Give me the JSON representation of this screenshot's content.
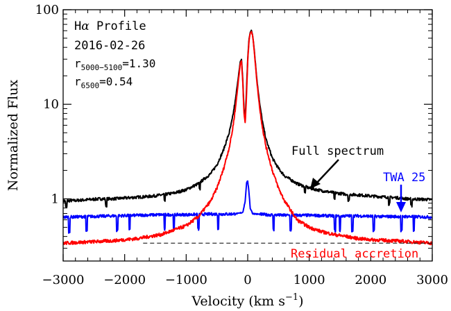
{
  "chart_data": {
    "type": "line",
    "title": "",
    "xlabel_main": "Velocity (km s",
    "xlabel_sup": "−1",
    "xlabel_close": ")",
    "ylabel": "Normalized Flux",
    "xlim": [
      -3000,
      3000
    ],
    "ylim": [
      0.22,
      100
    ],
    "yscale": "log",
    "x_ticks": [
      -3000,
      -2000,
      -1000,
      0,
      1000,
      2000,
      3000
    ],
    "x_tick_labels": [
      "−3000",
      "−2000",
      "−1000",
      "0",
      "1000",
      "2000",
      "3000"
    ],
    "y_ticks": [
      1,
      10,
      100
    ],
    "y_tick_labels": [
      "1",
      "10",
      "100"
    ],
    "grid": false,
    "legend": "none",
    "annotations": {
      "profile_prefix": "H",
      "profile_alpha": "α",
      "profile_suffix": " Profile",
      "date": "2016-02-26",
      "r1_base": "r",
      "r1_sub": "5000−5100",
      "r1_value": "=1.30",
      "r2_base": "r",
      "r2_sub": "6500",
      "r2_value": "=0.54",
      "full_label": "Full spectrum",
      "template_label": "TWA 25",
      "residual_label": "Residual accretion"
    },
    "series": [
      {
        "color": "#000000",
        "role": "full",
        "x": [
          -3000,
          -2800,
          -2600,
          -2400,
          -2200,
          -2000,
          -1800,
          -1600,
          -1400,
          -1200,
          -1000,
          -800,
          -600,
          -500,
          -400,
          -300,
          -250,
          -200,
          -150,
          -120,
          -100,
          -80,
          -60,
          -40,
          -20,
          0,
          20,
          40,
          60,
          80,
          100,
          120,
          150,
          200,
          250,
          300,
          400,
          500,
          600,
          800,
          1000,
          1200,
          1400,
          1600,
          1800,
          2000,
          2200,
          2400,
          2600,
          2800,
          3000
        ],
        "y": [
          0.95,
          0.96,
          0.98,
          1.0,
          1.0,
          1.02,
          1.04,
          1.06,
          1.1,
          1.15,
          1.25,
          1.45,
          1.85,
          2.3,
          3.2,
          5.0,
          7.0,
          11.0,
          20.0,
          28.0,
          30.0,
          18.0,
          9.0,
          7.0,
          14.0,
          30.0,
          48.0,
          58.0,
          60.0,
          54.0,
          42.0,
          30.0,
          18.0,
          9.5,
          6.0,
          4.2,
          2.7,
          2.1,
          1.75,
          1.45,
          1.3,
          1.22,
          1.16,
          1.12,
          1.1,
          1.07,
          1.05,
          1.03,
          1.0,
          0.99,
          0.98
        ]
      },
      {
        "color": "#0000ff",
        "role": "template",
        "x": [
          -3000,
          -2600,
          -2200,
          -1800,
          -1400,
          -1000,
          -600,
          -300,
          -150,
          -80,
          -40,
          -20,
          0,
          20,
          40,
          80,
          150,
          300,
          600,
          1000,
          1400,
          1800,
          2200,
          2600,
          3000
        ],
        "y": [
          0.64,
          0.65,
          0.66,
          0.67,
          0.68,
          0.68,
          0.69,
          0.69,
          0.7,
          0.72,
          0.95,
          1.45,
          1.55,
          1.2,
          0.8,
          0.7,
          0.69,
          0.68,
          0.67,
          0.67,
          0.66,
          0.66,
          0.65,
          0.65,
          0.64
        ]
      },
      {
        "color": "#ff0000",
        "role": "residual",
        "x": [
          -3000,
          -2600,
          -2200,
          -1800,
          -1400,
          -1000,
          -800,
          -600,
          -500,
          -400,
          -300,
          -250,
          -200,
          -150,
          -120,
          -100,
          -80,
          -60,
          -40,
          -20,
          0,
          20,
          40,
          60,
          80,
          100,
          120,
          150,
          200,
          250,
          300,
          400,
          500,
          600,
          800,
          1000,
          1200,
          1400,
          1600,
          1800,
          2000,
          2400,
          3000
        ],
        "y": [
          0.34,
          0.35,
          0.36,
          0.38,
          0.42,
          0.52,
          0.65,
          0.95,
          1.3,
          2.0,
          3.5,
          5.2,
          9.0,
          18.0,
          27.0,
          29.0,
          17.0,
          8.0,
          6.3,
          12.0,
          28.0,
          46.0,
          57.0,
          59.0,
          53.0,
          41.0,
          29.0,
          17.0,
          8.5,
          5.2,
          3.5,
          2.0,
          1.3,
          0.95,
          0.6,
          0.5,
          0.45,
          0.42,
          0.4,
          0.38,
          0.37,
          0.36,
          0.34
        ]
      }
    ],
    "reference_line": {
      "y": 0.34,
      "style": "dashed",
      "color": "#000000"
    }
  }
}
